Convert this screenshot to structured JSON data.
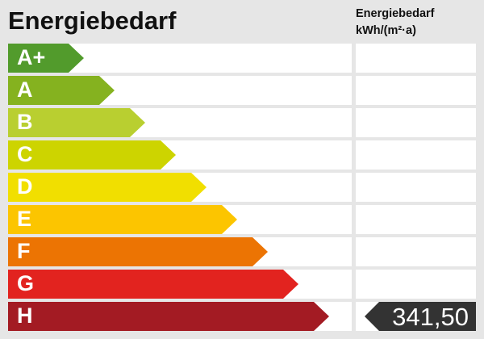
{
  "title": "Energiebedarf",
  "unit_label": [
    "Energiebedarf",
    "kWh/(m²·a)"
  ],
  "chart_data": {
    "type": "bar",
    "title": "Energiebedarf",
    "categories": [
      "A+",
      "A",
      "B",
      "C",
      "D",
      "E",
      "F",
      "G",
      "H"
    ],
    "colors": [
      "#529b2c",
      "#85b21f",
      "#b9cf30",
      "#cdd400",
      "#f1df00",
      "#fcc500",
      "#ec7403",
      "#e2231f",
      "#a31b23"
    ],
    "value": "341,50",
    "value_class": "H",
    "value_marker_color": "#333333"
  }
}
